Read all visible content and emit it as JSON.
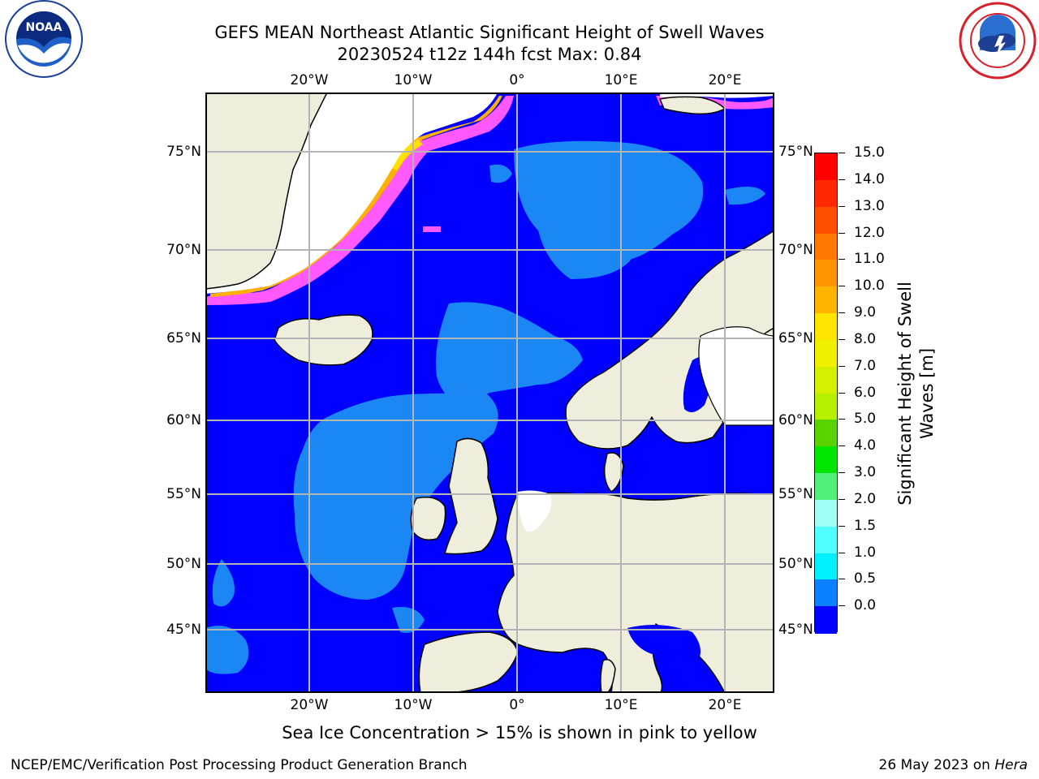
{
  "header": {
    "title_line1": "GEFS MEAN Northeast Atlantic Significant Height of Swell Waves",
    "title_line2": "20230524 t12z 144h fcst   Max: 0.84"
  },
  "logos": {
    "left": {
      "icon": "noaa-logo",
      "text": "NOAA"
    },
    "right": {
      "icon": "national-weather-service-logo"
    }
  },
  "map": {
    "lon_ticks_top": [
      "20°W",
      "10°W",
      "0°",
      "10°E",
      "20°E"
    ],
    "lon_ticks_bottom": [
      "20°W",
      "10°W",
      "0°",
      "10°E",
      "20°E"
    ],
    "lat_ticks_left": [
      "75°N",
      "70°N",
      "65°N",
      "60°N",
      "55°N",
      "50°N",
      "45°N"
    ],
    "lat_ticks_right": [
      "75°N",
      "70°N",
      "65°N",
      "60°N",
      "55°N",
      "50°N",
      "45°N"
    ],
    "colors": {
      "ocean_low": "#0000ff",
      "ocean_mid": "#1b87f5",
      "land": "#efeedd",
      "ice_free": "#ffffff",
      "ice_pink": "#ff59ff",
      "ice_orange": "#ffb000",
      "ice_yellow": "#ffe000",
      "grid": "#b4b4b4",
      "coast": "#000000"
    }
  },
  "colorbar": {
    "title": "Significant Height of Swell Waves [m]",
    "labels": [
      "15.0",
      "14.0",
      "13.0",
      "12.0",
      "11.0",
      "10.0",
      "9.0",
      "8.0",
      "7.0",
      "6.0",
      "5.0",
      "4.0",
      "3.0",
      "2.0",
      "1.5",
      "1.0",
      "0.5",
      "0.0"
    ],
    "colors_top_to_bottom": [
      "#ff0000",
      "#ff2800",
      "#ff5000",
      "#ff7800",
      "#ff9600",
      "#ffb400",
      "#ffe600",
      "#f0f000",
      "#d2f000",
      "#b4f000",
      "#5ad200",
      "#00e600",
      "#50f07a",
      "#a0fff5",
      "#50ffff",
      "#00f0ff",
      "#0a82ff",
      "#0000ff"
    ]
  },
  "note": "Sea Ice Concentration > 15% is shown in pink to yellow",
  "footer": {
    "left": "NCEP/EMC/Verification Post Processing Product Generation Branch",
    "right_date": "26 May 2023 on ",
    "right_host": "Hera"
  }
}
